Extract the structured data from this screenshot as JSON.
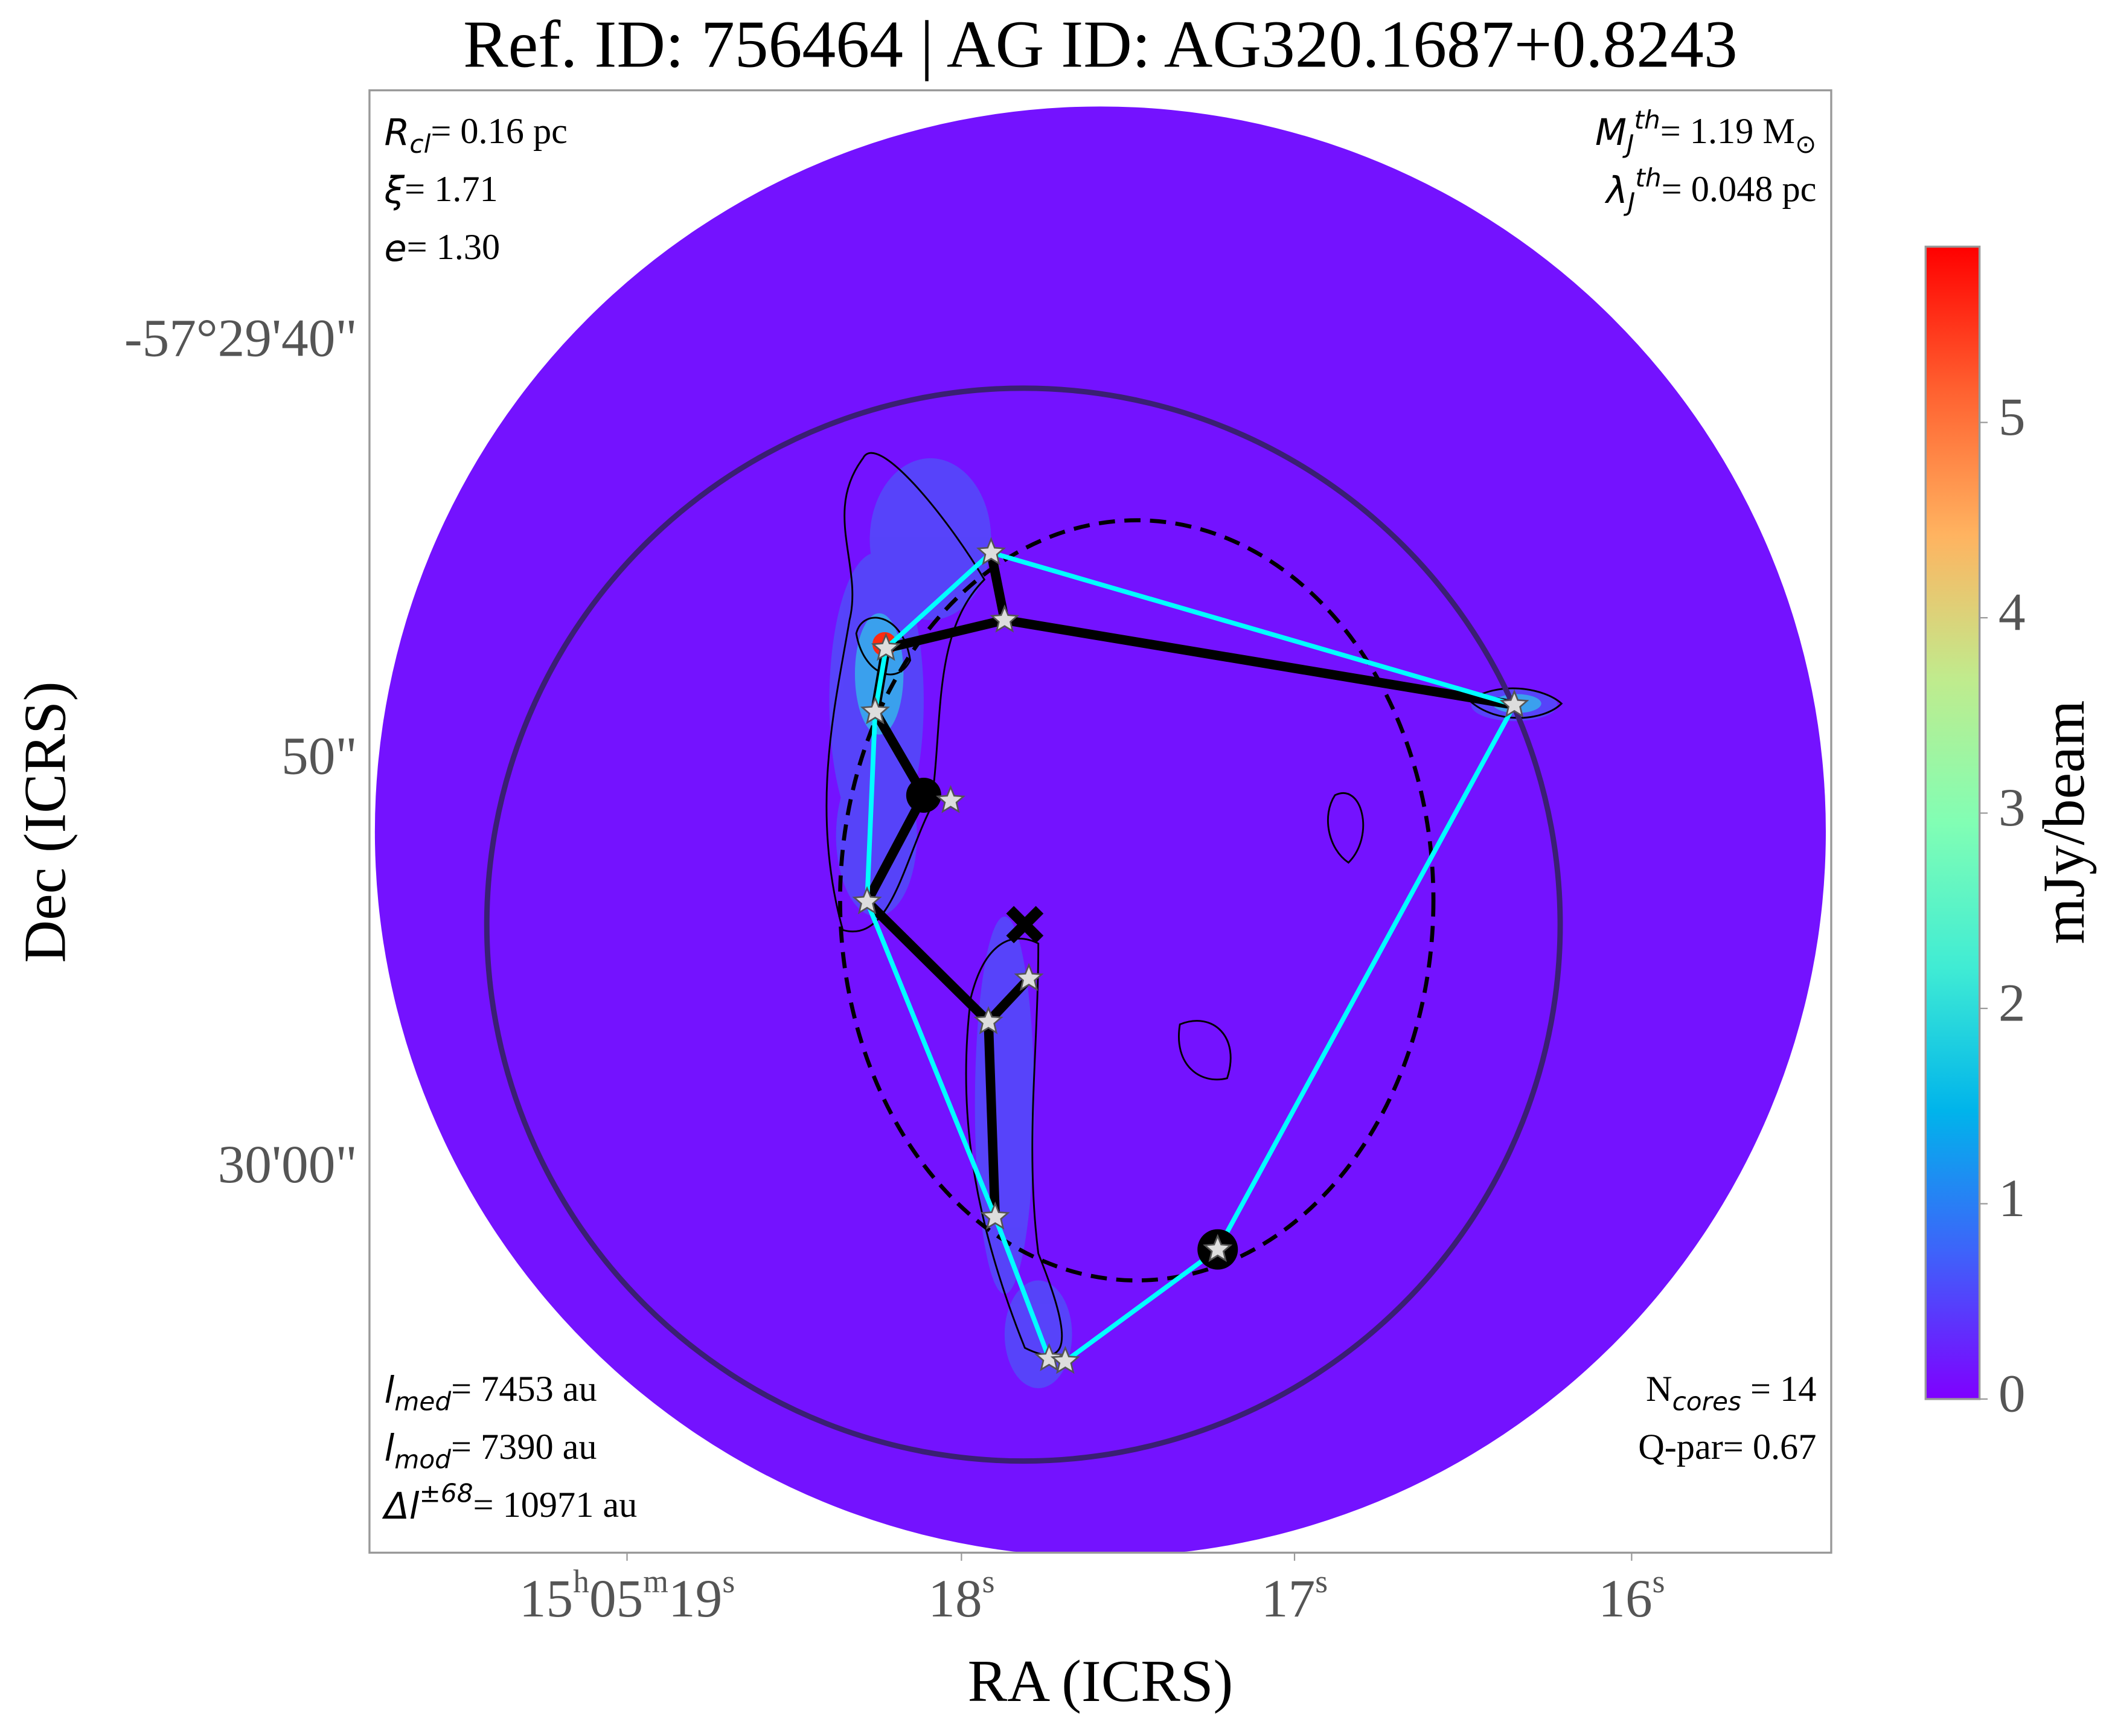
{
  "chart_data": {
    "type": "image",
    "title": "Ref. ID: 756464 | AG ID: AG320.1687+0.8243",
    "xlabel": "RA (ICRS)",
    "ylabel": "Dec (ICRS)",
    "ra_ticks": [
      [
        "15",
        "h",
        "05",
        "m",
        "19",
        "s"
      ],
      [
        "18",
        "s"
      ],
      [
        "17",
        "s"
      ],
      [
        "16",
        "s"
      ]
    ],
    "dec_ticks": [
      "-57°29'40\"",
      "50\"",
      "30'00\""
    ],
    "annotations_top_left": [
      [
        {
          "t": "R",
          "s": "i"
        },
        {
          "t": "cl",
          "s": "sub"
        },
        {
          "t": "= 0.16 pc"
        }
      ],
      [
        {
          "t": "ξ",
          "s": "i"
        },
        {
          "t": "= 1.71"
        }
      ],
      [
        {
          "t": "e",
          "s": "i"
        },
        {
          "t": "= 1.30"
        }
      ]
    ],
    "annotations_top_right": [
      [
        {
          "t": "M",
          "s": "i"
        },
        {
          "t": "J",
          "s": "sub"
        },
        {
          "t": "th",
          "s": "sup"
        },
        {
          "t": "= 1.19 M"
        },
        {
          "t": "⊙",
          "s": "sub"
        }
      ],
      [
        {
          "t": "λ",
          "s": "i"
        },
        {
          "t": "J",
          "s": "sub"
        },
        {
          "t": "th",
          "s": "sup"
        },
        {
          "t": "= 0.048 pc"
        }
      ]
    ],
    "annotations_bottom_left": [
      [
        {
          "t": "l",
          "s": "i"
        },
        {
          "t": "med",
          "s": "sub"
        },
        {
          "t": "= 7453 au"
        }
      ],
      [
        {
          "t": "l",
          "s": "i"
        },
        {
          "t": "mod",
          "s": "sub"
        },
        {
          "t": "= 7390 au"
        }
      ],
      [
        {
          "t": "Δl",
          "s": "i"
        },
        {
          "t": "±68",
          "s": "sup"
        },
        {
          "t": "= 10971 au"
        }
      ]
    ],
    "annotations_bottom_right": [
      [
        {
          "t": "N"
        },
        {
          "t": "cores",
          "s": "sub"
        },
        {
          "t": " = 14"
        }
      ],
      [
        {
          "t": "Q-par= 0.67"
        }
      ]
    ],
    "colorbar": {
      "label": "mJy/beam",
      "clim": [
        0,
        5.9
      ],
      "ticks": [
        0,
        1,
        2,
        3,
        4,
        5
      ],
      "colormap": [
        "#7f00ff",
        "#3f61fa",
        "#00b4eb",
        "#40ecd4",
        "#81feb4",
        "#c0eb8d",
        "#ffb360",
        "#ff6130",
        "#ff0000"
      ]
    }
  }
}
